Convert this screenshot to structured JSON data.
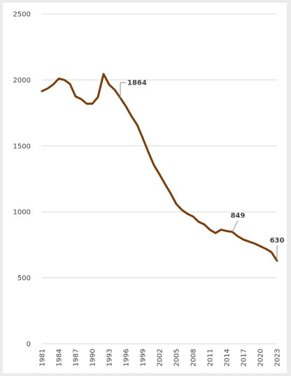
{
  "chart_data": {
    "type": "line",
    "title": "",
    "xlabel": "",
    "ylabel": "",
    "ylim": [
      0,
      2500
    ],
    "yticks": [
      0,
      500,
      1000,
      1500,
      2000,
      2500
    ],
    "xticks": [
      "1981",
      "1984",
      "1987",
      "1990",
      "1993",
      "1996",
      "1999",
      "2002",
      "2005",
      "2008",
      "2011",
      "2014",
      "2017",
      "2020",
      "2023"
    ],
    "grid": true,
    "legend": "none",
    "color": "#7b3f0c",
    "x": [
      1981,
      1982,
      1983,
      1984,
      1985,
      1986,
      1987,
      1988,
      1989,
      1990,
      1991,
      1992,
      1993,
      1994,
      1995,
      1996,
      1997,
      1998,
      1999,
      2000,
      2001,
      2002,
      2003,
      2004,
      2005,
      2006,
      2007,
      2008,
      2009,
      2010,
      2011,
      2012,
      2013,
      2014,
      2015,
      2016,
      2017,
      2018,
      2019,
      2020,
      2021,
      2022,
      2023
    ],
    "values": [
      1915,
      1935,
      1965,
      2010,
      2000,
      1970,
      1875,
      1855,
      1820,
      1820,
      1870,
      2045,
      1965,
      1925,
      1864,
      1800,
      1725,
      1660,
      1560,
      1455,
      1355,
      1285,
      1210,
      1140,
      1060,
      1015,
      985,
      965,
      925,
      905,
      865,
      840,
      865,
      855,
      849,
      815,
      790,
      775,
      760,
      740,
      720,
      695,
      630
    ],
    "annotations": [
      {
        "x": 1995,
        "y": 1864,
        "label": "1864"
      },
      {
        "x": 2015,
        "y": 849,
        "label": "849"
      },
      {
        "x": 2023,
        "y": 630,
        "label": "630"
      }
    ]
  }
}
